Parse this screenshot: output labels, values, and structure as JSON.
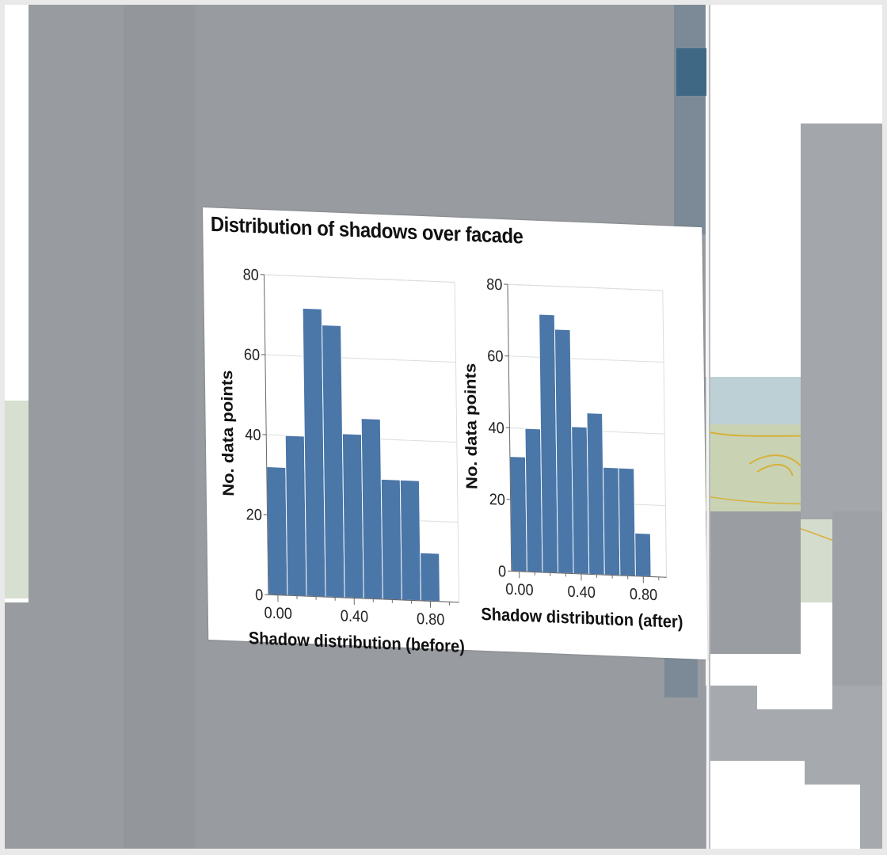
{
  "colors": {
    "bar": "#4a76a8",
    "building": "#9a9da1",
    "building_dark": "#8e9296",
    "glass": "#7b8b99",
    "ground": "#c9d8c0",
    "water": "#bcd0d6",
    "road": "#d7b03a"
  },
  "panel": {
    "title": "Distribution of shadows over facade"
  },
  "chart_data": [
    {
      "type": "bar",
      "bin_edges": [
        -0.05,
        0.05,
        0.15,
        0.25,
        0.35,
        0.45,
        0.55,
        0.65,
        0.75,
        0.85,
        0.95
      ],
      "values": [
        32,
        40,
        72,
        68,
        41,
        45,
        30,
        30,
        12,
        0
      ],
      "xlabel": "Shadow distribution (before)",
      "ylabel": "No. data points",
      "xlim": [
        -0.05,
        0.95
      ],
      "ylim": [
        0,
        80
      ],
      "xticks": [
        0.0,
        0.4,
        0.8
      ],
      "xtick_labels": [
        "0.00",
        "0.40",
        "0.80"
      ],
      "yticks": [
        0,
        20,
        40,
        60,
        80
      ],
      "ytick_labels": [
        "0",
        "20",
        "40",
        "60",
        "80"
      ],
      "grid": true
    },
    {
      "type": "bar",
      "bin_edges": [
        -0.05,
        0.05,
        0.15,
        0.25,
        0.35,
        0.45,
        0.55,
        0.65,
        0.75,
        0.85,
        0.95
      ],
      "values": [
        32,
        40,
        72,
        68,
        41,
        45,
        30,
        30,
        12,
        0
      ],
      "xlabel": "Shadow distribution (after)",
      "ylabel": "No. data points",
      "xlim": [
        -0.05,
        0.95
      ],
      "ylim": [
        0,
        80
      ],
      "xticks": [
        0.0,
        0.4,
        0.8
      ],
      "xtick_labels": [
        "0.00",
        "0.40",
        "0.80"
      ],
      "yticks": [
        0,
        20,
        40,
        60,
        80
      ],
      "ytick_labels": [
        "0",
        "20",
        "40",
        "60",
        "80"
      ],
      "grid": true
    }
  ]
}
